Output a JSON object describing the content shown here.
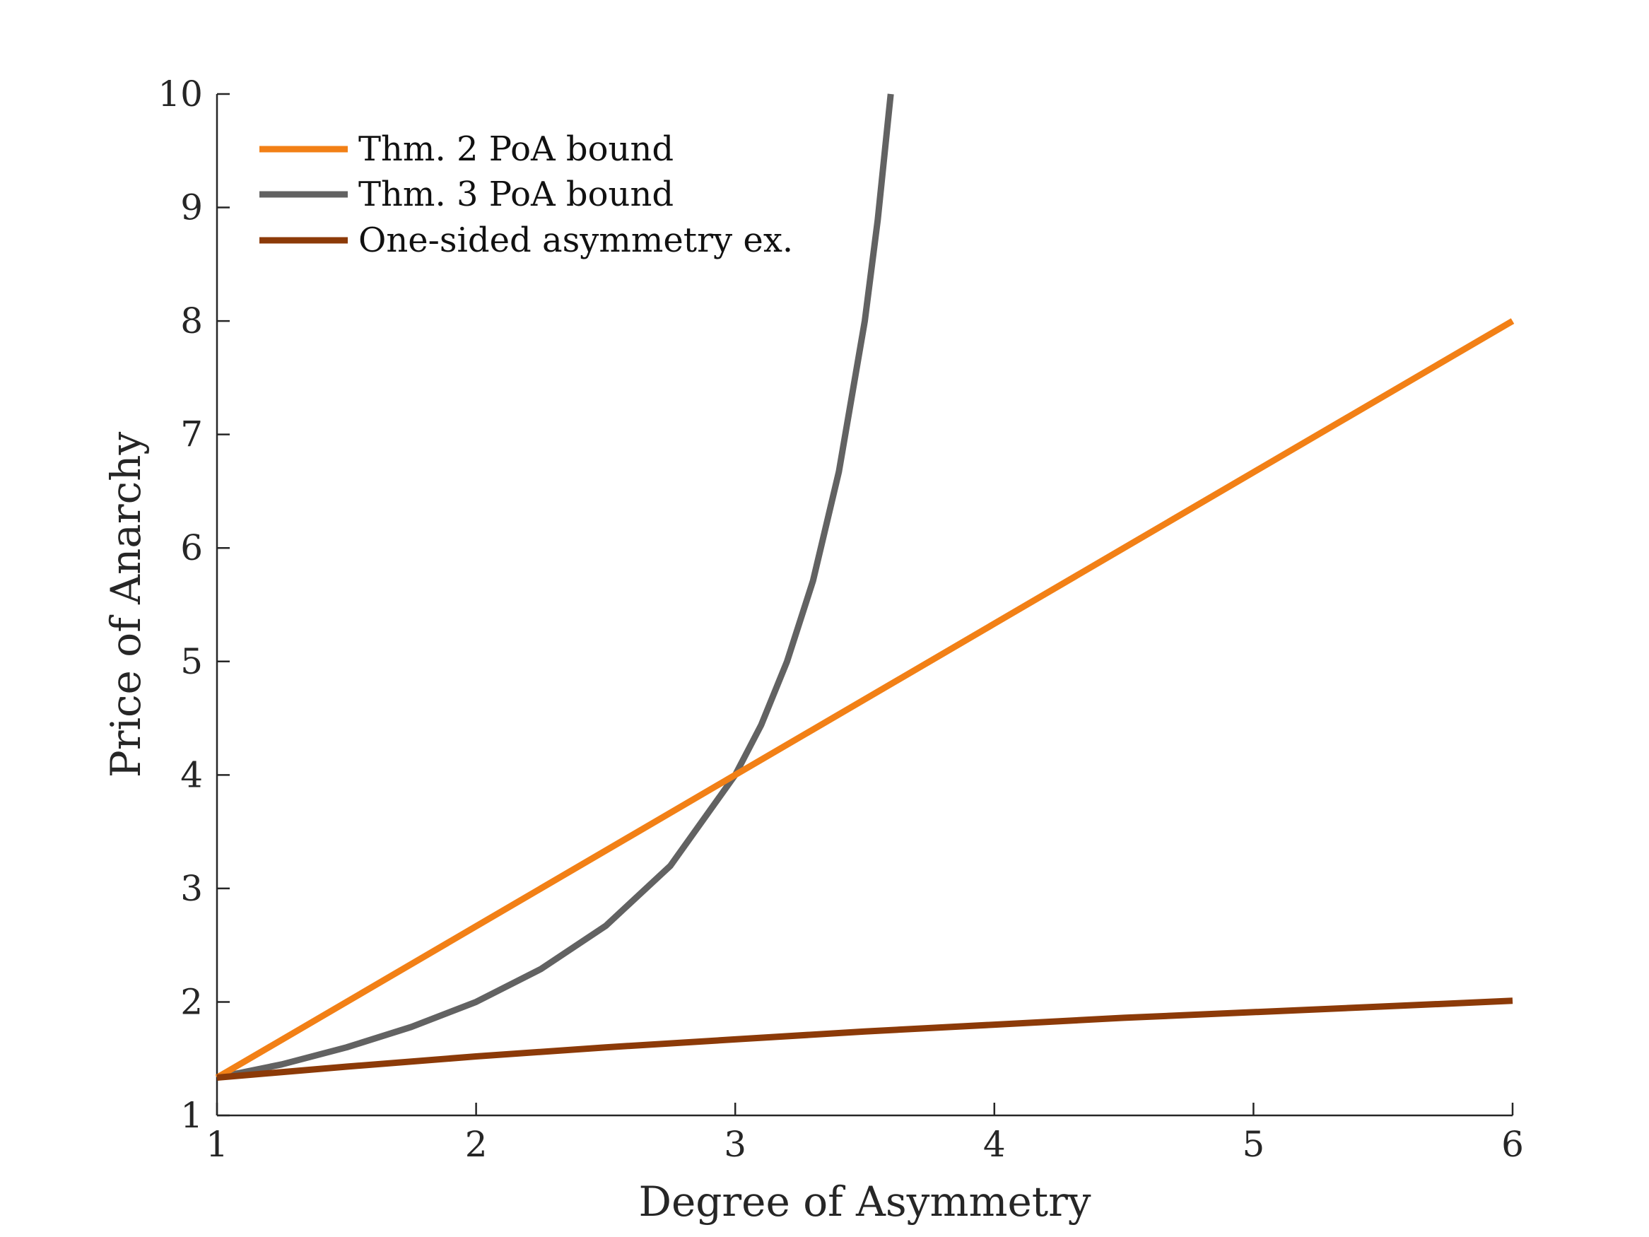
{
  "chart_data": {
    "type": "line",
    "title": "",
    "xlabel": "Degree of Asymmetry",
    "ylabel": "Price of Anarchy",
    "xlim": [
      1,
      6
    ],
    "ylim": [
      1,
      10
    ],
    "xticks": [
      1,
      2,
      3,
      4,
      5,
      6
    ],
    "yticks": [
      1,
      2,
      3,
      4,
      5,
      6,
      7,
      8,
      9,
      10
    ],
    "grid": false,
    "legend": "top-left",
    "series": [
      {
        "name": "Thm. 2 PoA bound",
        "color": "#F28016",
        "x": [
          1,
          2,
          3,
          4,
          5,
          6
        ],
        "y": [
          1.333,
          2.667,
          4.0,
          5.333,
          6.667,
          8.0
        ]
      },
      {
        "name": "Thm. 3 PoA bound",
        "color": "#626262",
        "x": [
          1,
          1.25,
          1.5,
          1.75,
          2,
          2.25,
          2.5,
          2.75,
          3,
          3.1,
          3.2,
          3.3,
          3.4,
          3.5,
          3.55,
          3.6
        ],
        "y": [
          1.333,
          1.45,
          1.6,
          1.78,
          2.0,
          2.29,
          2.67,
          3.2,
          4.0,
          4.44,
          5.0,
          5.71,
          6.67,
          8.0,
          8.89,
          10.0
        ]
      },
      {
        "name": "One-sided asymmetry ex.",
        "color": "#8C3A08",
        "x": [
          1,
          1.5,
          2,
          2.5,
          3,
          3.5,
          4,
          4.5,
          5,
          5.5,
          6
        ],
        "y": [
          1.333,
          1.43,
          1.52,
          1.6,
          1.67,
          1.74,
          1.8,
          1.86,
          1.91,
          1.96,
          2.01
        ]
      }
    ]
  }
}
